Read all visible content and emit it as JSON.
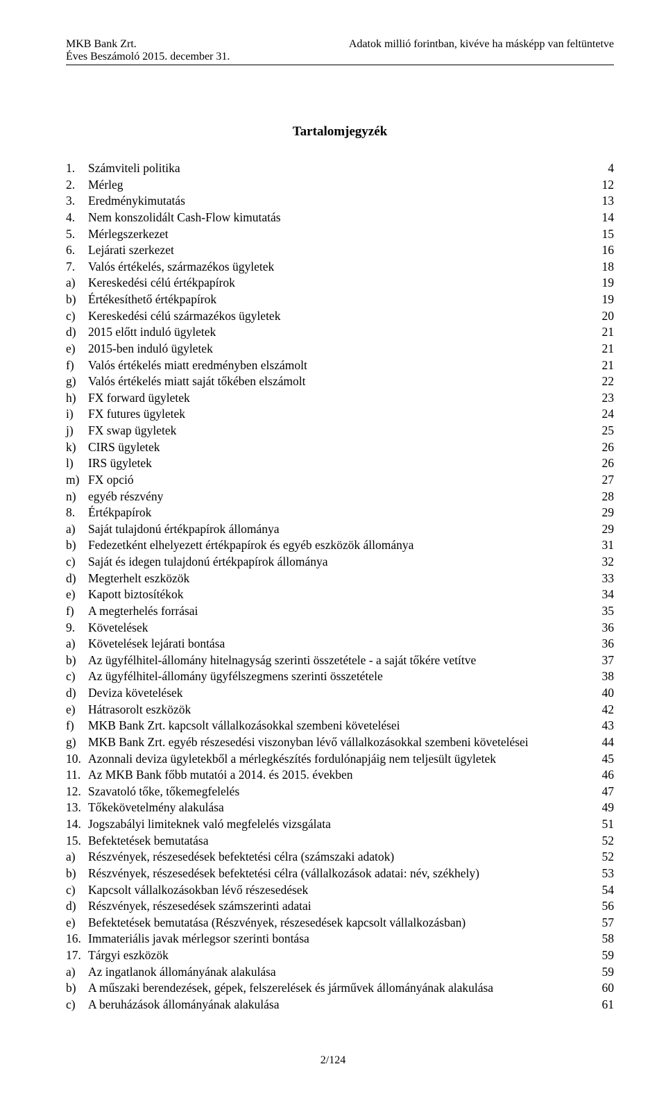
{
  "header": {
    "left_line1": "MKB Bank Zrt.",
    "left_line2": "Éves Beszámoló 2015. december 31.",
    "right_line1": "Adatok millió forintban, kivéve ha másképp van feltüntetve"
  },
  "title": "Tartalomjegyzék",
  "toc_entries": [
    {
      "label": "1.",
      "text": "Számviteli politika",
      "page": "4"
    },
    {
      "label": "2.",
      "text": "Mérleg",
      "page": "12"
    },
    {
      "label": "3.",
      "text": "Eredménykimutatás",
      "page": "13"
    },
    {
      "label": "4.",
      "text": "Nem konszolidált Cash-Flow kimutatás",
      "page": "14"
    },
    {
      "label": "5.",
      "text": "Mérlegszerkezet",
      "page": "15"
    },
    {
      "label": "6.",
      "text": "Lejárati szerkezet",
      "page": "16"
    },
    {
      "label": "7.",
      "text": "Valós értékelés, származékos ügyletek",
      "page": "18"
    },
    {
      "label": "a)",
      "text": "Kereskedési célú értékpapírok",
      "page": "19"
    },
    {
      "label": "b)",
      "text": "Értékesíthető értékpapírok",
      "page": "19"
    },
    {
      "label": "c)",
      "text": "Kereskedési célú származékos ügyletek",
      "page": "20"
    },
    {
      "label": "d)",
      "text": "2015 előtt induló ügyletek",
      "page": "21"
    },
    {
      "label": "e)",
      "text": "2015-ben induló ügyletek",
      "page": "21"
    },
    {
      "label": "f)",
      "text": "Valós értékelés miatt eredményben elszámolt",
      "page": "21"
    },
    {
      "label": "g)",
      "text": "Valós értékelés miatt saját tőkében elszámolt",
      "page": "22"
    },
    {
      "label": "h)",
      "text": "FX forward ügyletek",
      "page": "23"
    },
    {
      "label": "i)",
      "text": "FX futures ügyletek",
      "page": "24"
    },
    {
      "label": "j)",
      "text": "FX swap ügyletek",
      "page": "25"
    },
    {
      "label": "k)",
      "text": "CIRS ügyletek",
      "page": "26"
    },
    {
      "label": "l)",
      "text": "IRS ügyletek",
      "page": "26"
    },
    {
      "label": "m)",
      "text": "FX opció",
      "page": "27"
    },
    {
      "label": "n)",
      "text": "egyéb részvény",
      "page": "28"
    },
    {
      "label": "8.",
      "text": "Értékpapírok",
      "page": "29"
    },
    {
      "label": "a)",
      "text": "Saját tulajdonú értékpapírok állománya",
      "page": "29"
    },
    {
      "label": "b)",
      "text": "Fedezetként elhelyezett értékpapírok és egyéb eszközök állománya",
      "page": "31"
    },
    {
      "label": "c)",
      "text": "Saját és idegen tulajdonú értékpapírok állománya",
      "page": "32"
    },
    {
      "label": "d)",
      "text": "Megterhelt eszközök",
      "page": "33"
    },
    {
      "label": "e)",
      "text": "Kapott biztosítékok",
      "page": "34"
    },
    {
      "label": "f)",
      "text": "A megterhelés forrásai",
      "page": "35"
    },
    {
      "label": "9.",
      "text": "Követelések",
      "page": "36"
    },
    {
      "label": "a)",
      "text": "Követelések lejárati bontása",
      "page": "36"
    },
    {
      "label": "b)",
      "text": "Az ügyfélhitel-állomány hitelnagyság szerinti összetétele - a saját tőkére vetítve",
      "page": "37"
    },
    {
      "label": "c)",
      "text": "Az ügyfélhitel-állomány ügyfélszegmens szerinti összetétele",
      "page": "38"
    },
    {
      "label": "d)",
      "text": "Deviza követelések",
      "page": "40"
    },
    {
      "label": "e)",
      "text": "Hátrasorolt eszközök",
      "page": "42"
    },
    {
      "label": "f)",
      "text": "MKB Bank Zrt. kapcsolt vállalkozásokkal szembeni követelései",
      "page": "43"
    },
    {
      "label": "g)",
      "text": "MKB  Bank Zrt. egyéb részesedési viszonyban lévő vállalkozásokkal szembeni követelései",
      "page": "44"
    },
    {
      "label": "10.",
      "text": "Azonnali deviza ügyletekből a mérlegkészítés fordulónapjáig nem teljesült ügyletek",
      "page": "45"
    },
    {
      "label": "11.",
      "text": "Az MKB Bank főbb mutatói a 2014. és 2015. években",
      "page": "46"
    },
    {
      "label": "12.",
      "text": "Szavatoló tőke, tőkemegfelelés",
      "page": "47"
    },
    {
      "label": "13.",
      "text": "Tőkekövetelmény alakulása",
      "page": "49"
    },
    {
      "label": "14.",
      "text": "Jogszabályi limiteknek való megfelelés vizsgálata",
      "page": "51"
    },
    {
      "label": "15.",
      "text": "Befektetések bemutatása",
      "page": "52"
    },
    {
      "label": "a)",
      "text": "Részvények, részesedések befektetési célra (számszaki adatok)",
      "page": "52"
    },
    {
      "label": "b)",
      "text": "Részvények, részesedések befektetési célra (vállalkozások adatai: név, székhely)",
      "page": "53"
    },
    {
      "label": "c)",
      "text": "Kapcsolt vállalkozásokban lévő részesedések",
      "page": "54"
    },
    {
      "label": "d)",
      "text": "Részvények, részesedések számszerinti adatai",
      "page": "56"
    },
    {
      "label": "e)",
      "text": "Befektetések bemutatása (Részvények, részesedések kapcsolt vállalkozásban)",
      "page": "57"
    },
    {
      "label": "16.",
      "text": "Immateriális javak mérlegsor szerinti bontása",
      "page": "58"
    },
    {
      "label": "17.",
      "text": "Tárgyi eszközök",
      "page": "59"
    },
    {
      "label": "a)",
      "text": "Az ingatlanok állományának alakulása",
      "page": "59"
    },
    {
      "label": "b)",
      "text": "A műszaki berendezések, gépek, felszerelések és járművek állományának alakulása",
      "page": "60"
    },
    {
      "label": "c)",
      "text": "A beruházások állományának alakulása",
      "page": "61"
    }
  ],
  "page_number": "2/124"
}
